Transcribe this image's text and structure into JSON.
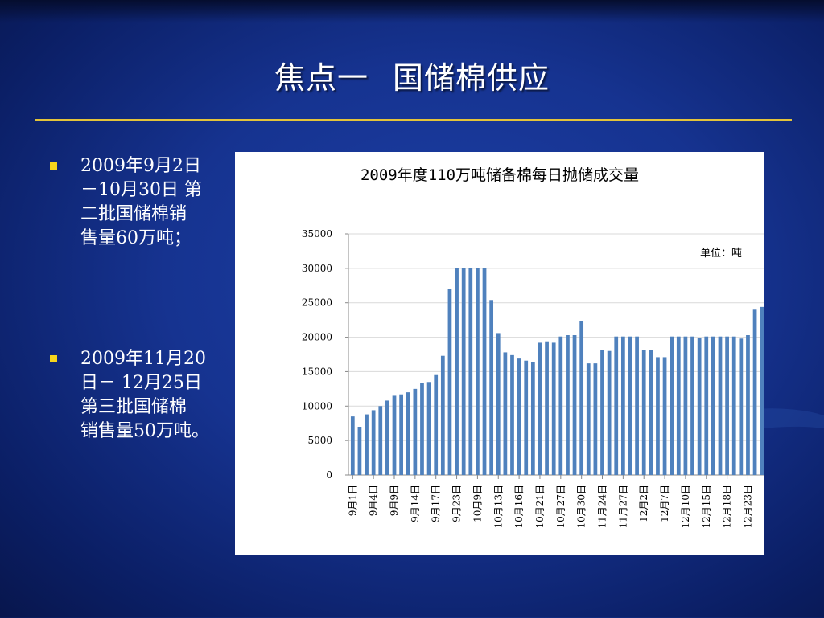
{
  "slide": {
    "title_part1": "焦点一",
    "title_part2": "国储棉供应"
  },
  "bullets": [
    {
      "lines": [
        "2009年9月2日",
        "－10月30日 第",
        "二批国储棉销",
        "售量60万吨；"
      ]
    },
    {
      "lines": [
        "2009年11月20",
        "日－ 12月25日",
        "第三批国储棉",
        "销售量50万吨。"
      ]
    }
  ],
  "colors": {
    "accent_rule": "#e3c33a",
    "bullet_marker": "#f6d51c",
    "bar": "#4f81bd"
  },
  "chart_data": {
    "type": "bar",
    "title": "2009年度110万吨储备棉每日抛储成交量",
    "unit_label": "单位：吨",
    "ylim": [
      0,
      35000
    ],
    "yticks": [
      0,
      5000,
      10000,
      15000,
      20000,
      25000,
      30000,
      35000
    ],
    "grid": true,
    "xtick_labels": [
      "9月1日",
      "9月4日",
      "9月9日",
      "9月14日",
      "9月17日",
      "9月23日",
      "10月9日",
      "10月13日",
      "10月16日",
      "10月21日",
      "10月27日",
      "10月30日",
      "11月24日",
      "11月27日",
      "12月2日",
      "12月7日",
      "12月10日",
      "12月15日",
      "12月18日",
      "12月23日"
    ],
    "values": [
      8500,
      7000,
      8800,
      9400,
      10000,
      10800,
      11500,
      11700,
      12000,
      12500,
      13300,
      13500,
      14500,
      17300,
      27000,
      30000,
      30000,
      30000,
      30000,
      30000,
      25400,
      20600,
      17800,
      17400,
      16900,
      16600,
      16400,
      19200,
      19400,
      19200,
      20100,
      20300,
      20300,
      22400,
      16200,
      16200,
      18200,
      18000,
      20100,
      20100,
      20100,
      20100,
      18200,
      18200,
      17100,
      17100,
      20100,
      20100,
      20100,
      20100,
      19900,
      20100,
      20100,
      20100,
      20100,
      20100,
      19800,
      20300,
      24000,
      24400
    ]
  }
}
